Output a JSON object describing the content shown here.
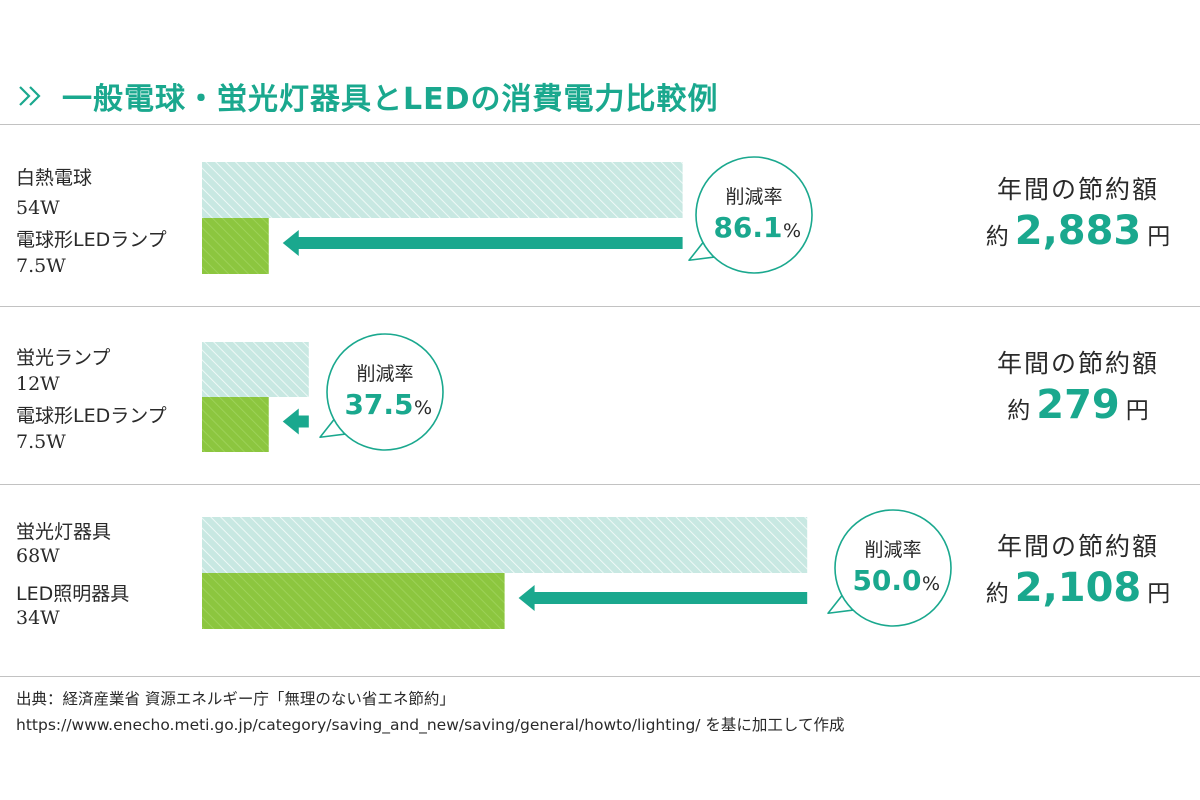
{
  "header": {
    "title": "一般電球・蛍光灯器具とLEDの消費電力比較例"
  },
  "colors": {
    "accent": "#1aa88e",
    "led_bar": "#8cc63f",
    "old_bar": "#c8e8e2",
    "rule": "#c2c2c2"
  },
  "icons": {
    "title_marker": "double-chevron-right-icon",
    "arrow": "arrow-left-icon",
    "bubble": "speech-bubble-icon"
  },
  "panels": [
    {
      "before": {
        "name": "白熱電球",
        "watt": "54W"
      },
      "after": {
        "name": "電球形LEDランプ",
        "watt": "7.5W"
      },
      "reduction": {
        "label": "削減率",
        "value": "86.1",
        "unit": "%"
      },
      "savings": {
        "head": "年間の節約額",
        "prefix": "約",
        "amount": "2,883",
        "unit": "円"
      }
    },
    {
      "before": {
        "name": "蛍光ランプ",
        "watt": "12W"
      },
      "after": {
        "name": "電球形LEDランプ",
        "watt": "7.5W"
      },
      "reduction": {
        "label": "削減率",
        "value": "37.5",
        "unit": "%"
      },
      "savings": {
        "head": "年間の節約額",
        "prefix": "約",
        "amount": "279",
        "unit": "円"
      }
    },
    {
      "before": {
        "name": "蛍光灯器具",
        "watt": "68W"
      },
      "after": {
        "name": "LED照明器具",
        "watt": "34W"
      },
      "reduction": {
        "label": "削減率",
        "value": "50.0",
        "unit": "%"
      },
      "savings": {
        "head": "年間の節約額",
        "prefix": "約",
        "amount": "2,108",
        "unit": "円"
      }
    }
  ],
  "chart_data": {
    "type": "bar",
    "categories": [
      "白熱電球 vs 電球形LEDランプ",
      "蛍光ランプ vs 電球形LEDランプ",
      "蛍光灯器具 vs LED照明器具"
    ],
    "series": [
      {
        "name": "",
        "values": [
          54,
          12,
          68
        ]
      },
      {
        "name": "",
        "values": [
          7.5,
          7.5,
          34
        ]
      }
    ],
    "reduction_percent": [
      86.1,
      37.5,
      50.0
    ],
    "annual_savings_yen": [
      2883,
      279,
      2108
    ]
  },
  "source": {
    "line1": "出典：経済産業省 資源エネルギー庁「無理のない省エネ節約」",
    "line2": "https://www.enecho.meti.go.jp/category/saving_and_new/saving/general/howto/lighting/ を基に加工して作成"
  }
}
